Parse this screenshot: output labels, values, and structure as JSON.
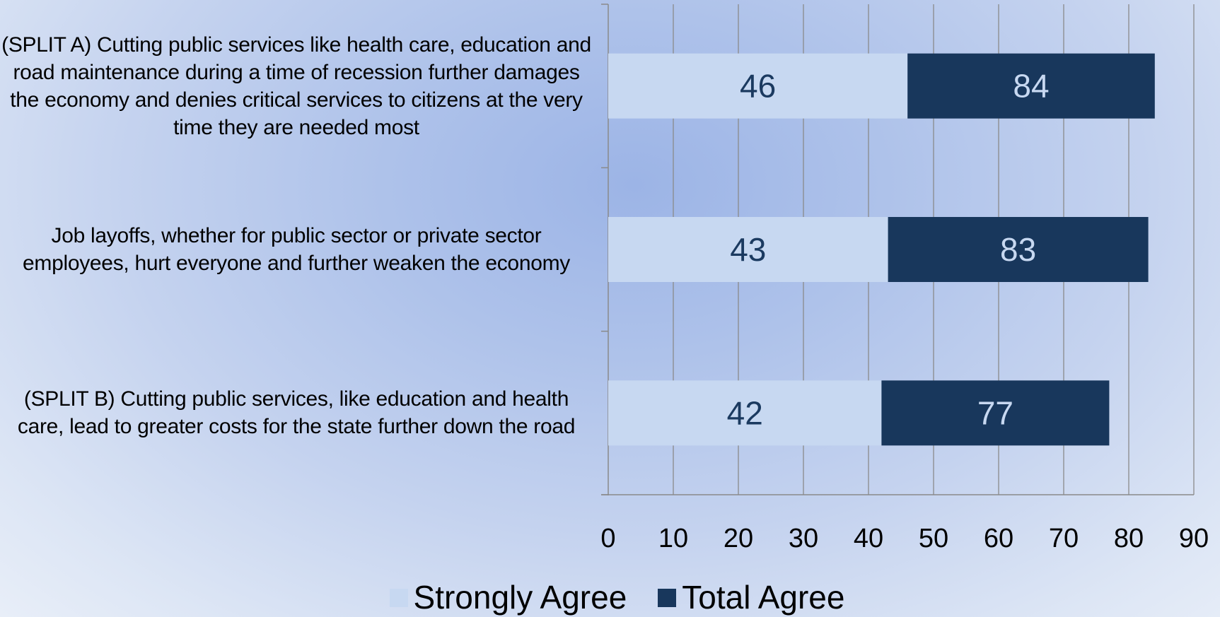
{
  "chart_data": {
    "type": "bar",
    "orientation": "horizontal",
    "stacked": false,
    "categories": [
      "(SPLIT A) Cutting public services like health care, education and road maintenance during a time of recession further damages the economy and denies critical services to citizens at the very time they are needed most",
      "Job layoffs, whether for public sector or private sector employees, hurt everyone and further weaken the economy",
      "(SPLIT B) Cutting public services, like education and health care, lead to greater costs for the state further down the road"
    ],
    "series": [
      {
        "name": "Strongly Agree",
        "values": [
          46,
          43,
          42
        ],
        "color": "#c7d8f1",
        "label_color": "#1b3a60"
      },
      {
        "name": "Total Agree",
        "values": [
          84,
          83,
          77
        ],
        "color": "#18375c",
        "label_color": "#c7d8f1"
      }
    ],
    "xlim": [
      0,
      90
    ],
    "xticks": [
      0,
      10,
      20,
      30,
      40,
      50,
      60,
      70,
      80,
      90
    ],
    "grid": true,
    "legend_position": "bottom",
    "title": "",
    "xlabel": "",
    "ylabel": ""
  },
  "colors": {
    "axis": "#8a8a8a",
    "grid": "#8a8a8a"
  }
}
